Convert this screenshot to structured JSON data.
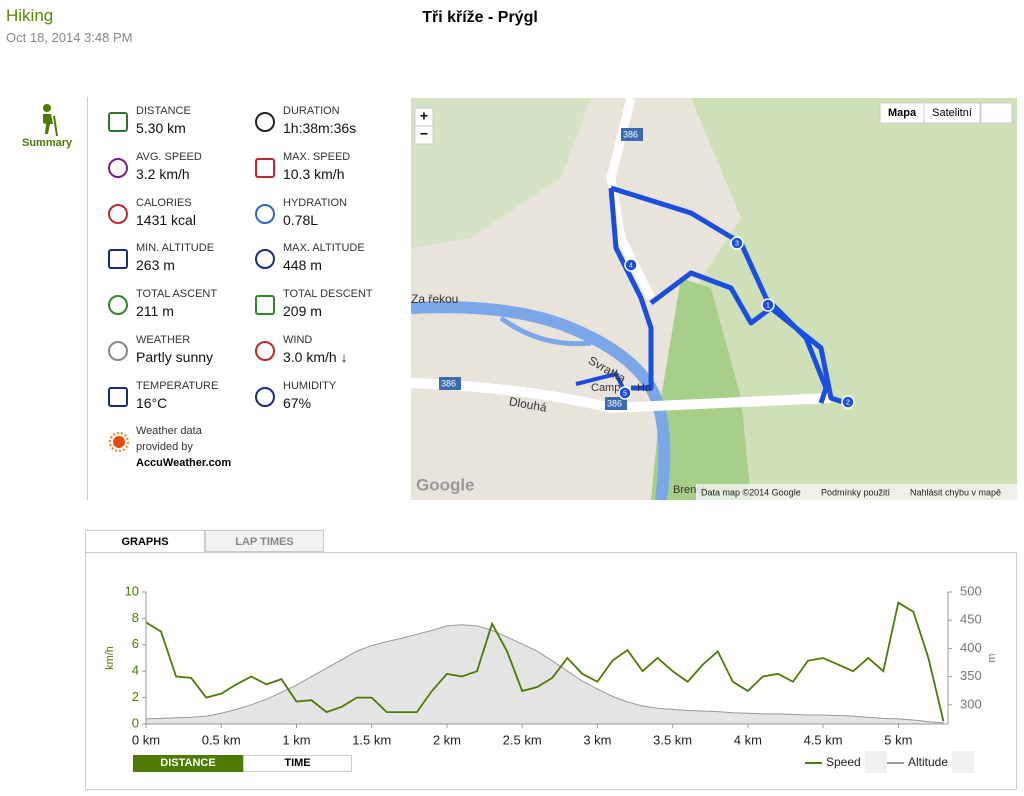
{
  "header": {
    "activity": "Hiking",
    "date": "Oct 18, 2014 3:48 PM",
    "title": "Tři kříže - Prýgl"
  },
  "sidebar": {
    "label": "Summary"
  },
  "stats": [
    {
      "label": "DISTANCE",
      "value": "5.30 km"
    },
    {
      "label": "DURATION",
      "value": "1h:38m:36s"
    },
    {
      "label": "AVG. SPEED",
      "value": "3.2 km/h"
    },
    {
      "label": "MAX. SPEED",
      "value": "10.3 km/h"
    },
    {
      "label": "CALORIES",
      "value": "1431 kcal"
    },
    {
      "label": "HYDRATION",
      "value": "0.78L"
    },
    {
      "label": "MIN. ALTITUDE",
      "value": "263 m"
    },
    {
      "label": "MAX. ALTITUDE",
      "value": "448 m"
    },
    {
      "label": "TOTAL ASCENT",
      "value": "211 m"
    },
    {
      "label": "TOTAL DESCENT",
      "value": "209 m"
    },
    {
      "label": "WEATHER",
      "value": "Partly sunny"
    },
    {
      "label": "WIND",
      "value": "3.0 km/h ↓"
    },
    {
      "label": "TEMPERATURE",
      "value": "16°C"
    },
    {
      "label": "HUMIDITY",
      "value": "67%"
    }
  ],
  "weather_note": {
    "line1": "Weather data",
    "line2": "provided by",
    "provider": "AccuWeather.com"
  },
  "map": {
    "zoom_in": "+",
    "zoom_out": "−",
    "buttons": [
      "Mapa",
      "Satelitní"
    ],
    "labels": [
      "Za řekou",
      "Svratka",
      "Dlouhá",
      "386",
      "386",
      "386",
      "Camp",
      "Ha",
      "Brenek"
    ],
    "markers": [
      "1",
      "2",
      "3",
      "4",
      "5"
    ],
    "logo": "Google",
    "footer": [
      "Data map ©2014 Google",
      "Podmínky použití",
      "Nahlásit chybu v mapě"
    ]
  },
  "tabs": [
    "GRAPHS",
    "LAP TIMES"
  ],
  "toggles": [
    "DISTANCE",
    "TIME"
  ],
  "chart_data": {
    "type": "line",
    "x": [
      0,
      0.1,
      0.2,
      0.3,
      0.4,
      0.5,
      0.6,
      0.7,
      0.8,
      0.9,
      1.0,
      1.1,
      1.2,
      1.3,
      1.4,
      1.5,
      1.6,
      1.7,
      1.8,
      1.9,
      2.0,
      2.1,
      2.2,
      2.3,
      2.4,
      2.5,
      2.6,
      2.7,
      2.8,
      2.9,
      3.0,
      3.1,
      3.2,
      3.3,
      3.4,
      3.5,
      3.6,
      3.7,
      3.8,
      3.9,
      4.0,
      4.1,
      4.2,
      4.3,
      4.4,
      4.5,
      4.6,
      4.7,
      4.8,
      4.9,
      5.0,
      5.1,
      5.2,
      5.3
    ],
    "series": [
      {
        "name": "Speed",
        "color": "#4d7a00",
        "values": [
          7.7,
          7.0,
          3.6,
          3.5,
          2.0,
          2.3,
          3.0,
          3.6,
          3.0,
          3.4,
          1.7,
          1.8,
          0.9,
          1.3,
          2.0,
          2.0,
          0.9,
          0.9,
          0.9,
          2.5,
          3.8,
          3.6,
          4.0,
          7.6,
          5.5,
          2.5,
          2.8,
          3.5,
          5.0,
          3.8,
          3.2,
          4.8,
          5.6,
          4.0,
          5.0,
          4.0,
          3.2,
          4.5,
          5.5,
          3.2,
          2.5,
          3.6,
          3.8,
          3.2,
          4.8,
          5.0,
          4.5,
          4.0,
          5.0,
          4.0,
          9.2,
          8.5,
          5.0,
          0.2
        ]
      },
      {
        "name": "Altitude",
        "color": "#999999",
        "axis": "y2",
        "values": [
          275,
          276,
          277,
          278,
          280,
          285,
          292,
          300,
          310,
          322,
          335,
          350,
          365,
          380,
          395,
          405,
          412,
          418,
          425,
          432,
          440,
          442,
          440,
          432,
          420,
          408,
          395,
          378,
          360,
          342,
          328,
          315,
          305,
          298,
          294,
          292,
          290,
          289,
          288,
          286,
          285,
          284,
          284,
          283,
          282,
          282,
          281,
          280,
          278,
          276,
          275,
          273,
          270,
          268
        ]
      }
    ],
    "xlim": [
      0,
      5.33
    ],
    "xticks": [
      {
        "value": 0,
        "label": "0 km"
      },
      {
        "value": 0.5,
        "label": "0.5 km"
      },
      {
        "value": 1,
        "label": "1 km"
      },
      {
        "value": 1.5,
        "label": "1.5 km"
      },
      {
        "value": 2,
        "label": "2 km"
      },
      {
        "value": 2.5,
        "label": "2.5 km"
      },
      {
        "value": 3,
        "label": "3 km"
      },
      {
        "value": 3.5,
        "label": "3.5 km"
      },
      {
        "value": 4,
        "label": "4 km"
      },
      {
        "value": 4.5,
        "label": "4.5 km"
      },
      {
        "value": 5,
        "label": "5 km"
      }
    ],
    "ylim": [
      0,
      10
    ],
    "yticks": [
      0,
      2,
      4,
      6,
      8,
      10
    ],
    "y2lim": [
      266,
      500
    ],
    "y2ticks": [
      300,
      350,
      400,
      450,
      500
    ],
    "ylabel": "km/h",
    "y2label": "m"
  }
}
